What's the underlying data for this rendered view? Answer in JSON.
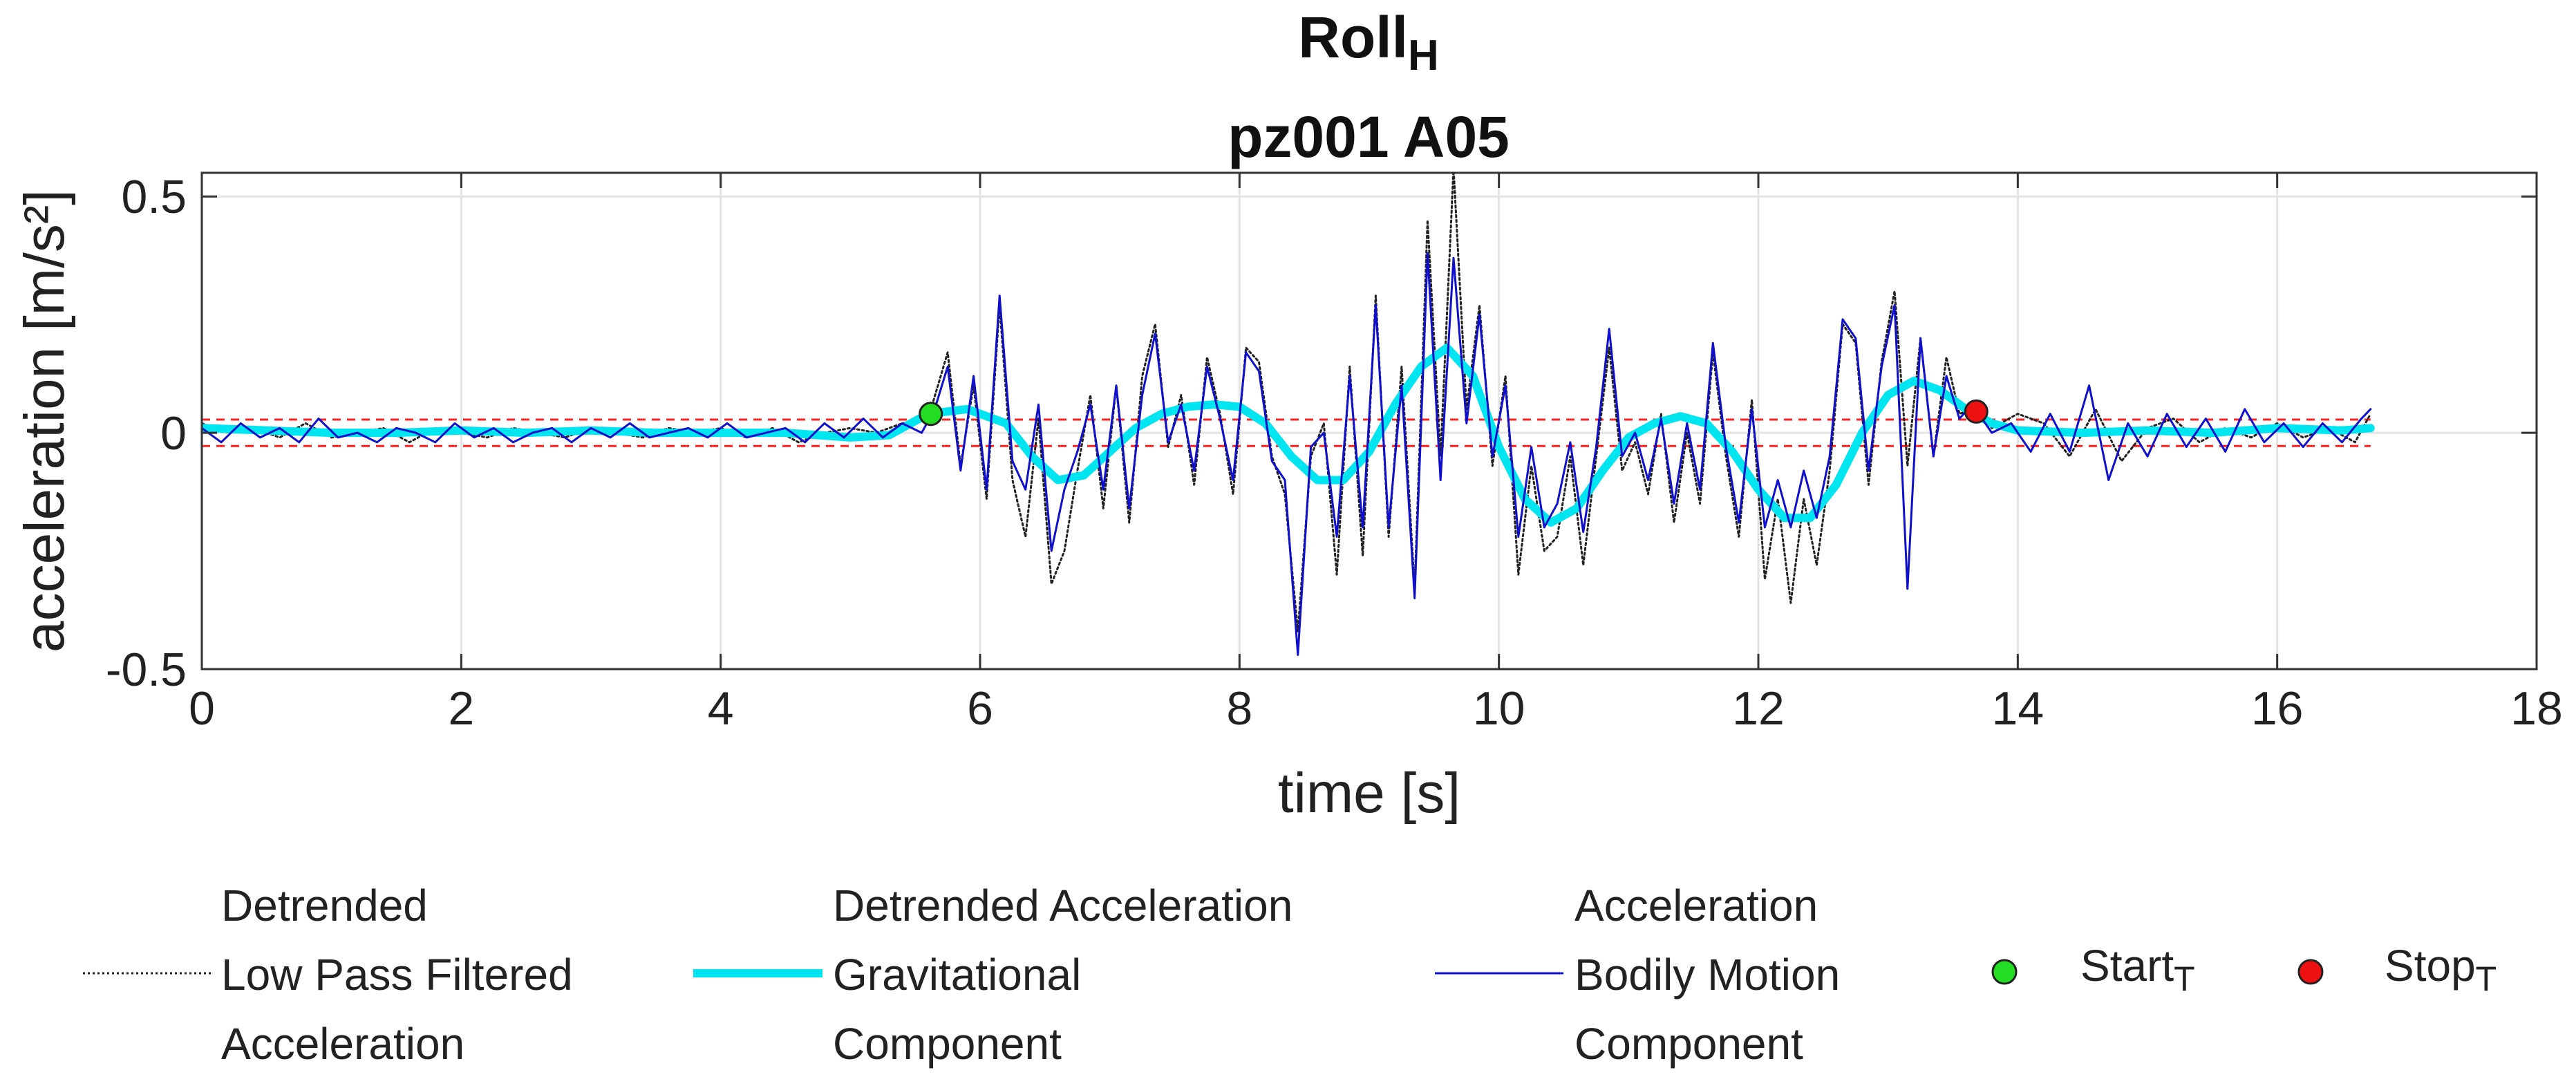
{
  "figure": {
    "title": "Roll",
    "title_sub": "H",
    "subtitle": "pz001 A05"
  },
  "chart_data": {
    "type": "line",
    "title": "Roll_H",
    "subtitle": "pz001 A05",
    "xlabel": "time [s]",
    "ylabel": "acceleration [m/s²]",
    "xlim": [
      0,
      18
    ],
    "ylim": [
      -0.5,
      0.55
    ],
    "xticks": [
      0,
      2,
      4,
      6,
      8,
      10,
      12,
      14,
      16,
      18
    ],
    "xtick_labels": [
      "0",
      "2",
      "4",
      "6",
      "8",
      "10",
      "12",
      "14",
      "16",
      "18"
    ],
    "yticks": [
      -0.5,
      0,
      0.5
    ],
    "ytick_labels": [
      "-0.5",
      "0",
      "0.5"
    ],
    "grid": true,
    "threshold_lines": [
      0.028,
      -0.028
    ],
    "series": [
      {
        "name": "Detrended Low Pass Filtered Acceleration",
        "color": "#222222",
        "style": "dotted",
        "x": [
          0,
          0.2,
          0.4,
          0.6,
          0.8,
          1.0,
          1.2,
          1.4,
          1.6,
          1.8,
          2.0,
          2.2,
          2.4,
          2.6,
          2.8,
          3.0,
          3.2,
          3.4,
          3.6,
          3.8,
          4.0,
          4.2,
          4.4,
          4.6,
          4.8,
          5.0,
          5.2,
          5.4,
          5.6,
          5.75,
          5.85,
          5.95,
          6.05,
          6.15,
          6.25,
          6.35,
          6.45,
          6.55,
          6.65,
          6.75,
          6.85,
          6.95,
          7.05,
          7.15,
          7.25,
          7.35,
          7.45,
          7.55,
          7.65,
          7.75,
          7.85,
          7.95,
          8.05,
          8.15,
          8.25,
          8.35,
          8.45,
          8.55,
          8.65,
          8.75,
          8.85,
          8.95,
          9.05,
          9.15,
          9.25,
          9.35,
          9.45,
          9.55,
          9.65,
          9.75,
          9.85,
          9.95,
          10.05,
          10.15,
          10.25,
          10.35,
          10.45,
          10.55,
          10.65,
          10.75,
          10.85,
          10.95,
          11.05,
          11.15,
          11.25,
          11.35,
          11.45,
          11.55,
          11.65,
          11.75,
          11.85,
          11.95,
          12.05,
          12.15,
          12.25,
          12.35,
          12.45,
          12.55,
          12.65,
          12.75,
          12.85,
          12.95,
          13.05,
          13.15,
          13.25,
          13.35,
          13.45,
          13.55,
          13.65,
          13.8,
          14.0,
          14.2,
          14.4,
          14.6,
          14.8,
          15.0,
          15.2,
          15.4,
          15.6,
          15.8,
          16.0,
          16.2,
          16.4,
          16.6,
          16.72
        ],
        "values": [
          0.02,
          0.0,
          0.01,
          -0.01,
          0.02,
          -0.01,
          0.0,
          0.01,
          -0.02,
          0.01,
          0.0,
          -0.01,
          0.01,
          0.0,
          -0.01,
          0.01,
          0.0,
          -0.01,
          0.01,
          0.0,
          0.01,
          -0.01,
          0.01,
          -0.02,
          0.0,
          0.01,
          0.0,
          0.02,
          0.03,
          0.17,
          -0.07,
          0.1,
          -0.14,
          0.27,
          -0.1,
          -0.22,
          0.03,
          -0.32,
          -0.25,
          -0.08,
          0.08,
          -0.16,
          0.1,
          -0.19,
          0.12,
          0.23,
          -0.03,
          0.08,
          -0.11,
          0.16,
          0.04,
          -0.13,
          0.18,
          0.15,
          -0.05,
          -0.13,
          -0.42,
          -0.05,
          0.02,
          -0.3,
          0.14,
          -0.26,
          0.29,
          -0.22,
          0.14,
          -0.33,
          0.45,
          -0.05,
          0.56,
          0.05,
          0.27,
          -0.07,
          0.12,
          -0.3,
          -0.07,
          -0.25,
          -0.22,
          -0.05,
          -0.28,
          -0.05,
          0.18,
          -0.08,
          -0.02,
          -0.13,
          0.04,
          -0.19,
          0.0,
          -0.15,
          0.17,
          -0.05,
          -0.22,
          0.07,
          -0.31,
          -0.14,
          -0.36,
          -0.14,
          -0.28,
          -0.08,
          0.23,
          0.19,
          -0.11,
          0.15,
          0.3,
          -0.07,
          0.2,
          -0.05,
          0.16,
          0.04,
          0.05,
          0.01,
          0.04,
          0.02,
          -0.05,
          0.05,
          -0.06,
          0.01,
          0.03,
          -0.02,
          0.01,
          -0.01,
          0.02,
          -0.01,
          0.01,
          -0.02,
          0.04
        ]
      },
      {
        "name": "Detrended Acceleration Gravitational Component",
        "color": "#00e5f0",
        "style": "solid",
        "x": [
          0,
          0.5,
          1.0,
          1.5,
          2.0,
          2.5,
          3.0,
          3.5,
          4.0,
          4.5,
          5.0,
          5.3,
          5.6,
          5.9,
          6.2,
          6.4,
          6.6,
          6.8,
          7.0,
          7.2,
          7.4,
          7.6,
          7.8,
          8.0,
          8.2,
          8.4,
          8.6,
          8.8,
          9.0,
          9.2,
          9.4,
          9.6,
          9.8,
          10.0,
          10.2,
          10.4,
          10.6,
          10.8,
          11.0,
          11.2,
          11.4,
          11.6,
          11.8,
          12.0,
          12.2,
          12.4,
          12.6,
          12.8,
          13.0,
          13.2,
          13.4,
          13.6,
          13.8,
          14.0,
          14.5,
          15.0,
          15.5,
          16.0,
          16.5,
          16.72
        ],
        "values": [
          0.01,
          0.005,
          0.0,
          0.0,
          0.005,
          0.0,
          0.005,
          0.0,
          0.0,
          0.0,
          -0.01,
          -0.005,
          0.04,
          0.05,
          0.02,
          -0.05,
          -0.1,
          -0.09,
          -0.04,
          0.01,
          0.04,
          0.055,
          0.06,
          0.055,
          0.02,
          -0.05,
          -0.1,
          -0.1,
          -0.04,
          0.06,
          0.14,
          0.18,
          0.12,
          -0.03,
          -0.14,
          -0.19,
          -0.16,
          -0.08,
          -0.01,
          0.02,
          0.035,
          0.02,
          -0.04,
          -0.12,
          -0.18,
          -0.18,
          -0.11,
          0.0,
          0.08,
          0.11,
          0.09,
          0.05,
          0.02,
          0.005,
          0.0,
          0.005,
          0.0,
          0.01,
          0.005,
          0.01
        ]
      },
      {
        "name": "Acceleration Bodily Motion Component",
        "color": "#1010cc",
        "style": "solid",
        "x": [
          0,
          0.15,
          0.3,
          0.45,
          0.6,
          0.75,
          0.9,
          1.05,
          1.2,
          1.35,
          1.5,
          1.65,
          1.8,
          1.95,
          2.1,
          2.25,
          2.4,
          2.55,
          2.7,
          2.85,
          3.0,
          3.15,
          3.3,
          3.45,
          3.6,
          3.75,
          3.9,
          4.05,
          4.2,
          4.35,
          4.5,
          4.65,
          4.8,
          4.95,
          5.1,
          5.25,
          5.4,
          5.55,
          5.65,
          5.75,
          5.85,
          5.95,
          6.05,
          6.15,
          6.25,
          6.35,
          6.45,
          6.55,
          6.65,
          6.75,
          6.85,
          6.95,
          7.05,
          7.15,
          7.25,
          7.35,
          7.45,
          7.55,
          7.65,
          7.75,
          7.85,
          7.95,
          8.05,
          8.15,
          8.25,
          8.35,
          8.45,
          8.55,
          8.65,
          8.75,
          8.85,
          8.95,
          9.05,
          9.15,
          9.25,
          9.35,
          9.45,
          9.55,
          9.65,
          9.75,
          9.85,
          9.95,
          10.05,
          10.15,
          10.25,
          10.35,
          10.45,
          10.55,
          10.65,
          10.75,
          10.85,
          10.95,
          11.05,
          11.15,
          11.25,
          11.35,
          11.45,
          11.55,
          11.65,
          11.75,
          11.85,
          11.95,
          12.05,
          12.15,
          12.25,
          12.35,
          12.45,
          12.55,
          12.65,
          12.75,
          12.85,
          12.95,
          13.05,
          13.15,
          13.25,
          13.35,
          13.45,
          13.55,
          13.65,
          13.8,
          13.95,
          14.1,
          14.25,
          14.4,
          14.55,
          14.7,
          14.85,
          15.0,
          15.15,
          15.3,
          15.45,
          15.6,
          15.75,
          15.9,
          16.05,
          16.2,
          16.35,
          16.5,
          16.65,
          16.72
        ],
        "values": [
          0.01,
          -0.02,
          0.02,
          -0.01,
          0.01,
          -0.02,
          0.03,
          -0.01,
          0.0,
          -0.02,
          0.01,
          0.0,
          -0.02,
          0.02,
          -0.01,
          0.01,
          -0.02,
          0.0,
          0.01,
          -0.02,
          0.01,
          -0.01,
          0.02,
          -0.01,
          0.0,
          0.01,
          -0.01,
          0.02,
          -0.01,
          0.0,
          0.01,
          -0.02,
          0.02,
          -0.01,
          0.03,
          -0.01,
          0.02,
          0.0,
          0.05,
          0.14,
          -0.08,
          0.12,
          -0.12,
          0.29,
          -0.06,
          -0.12,
          0.06,
          -0.25,
          -0.12,
          -0.04,
          0.06,
          -0.12,
          0.1,
          -0.16,
          0.08,
          0.21,
          -0.02,
          0.06,
          -0.08,
          0.14,
          0.03,
          -0.1,
          0.17,
          0.13,
          -0.06,
          -0.1,
          -0.47,
          -0.03,
          0.0,
          -0.22,
          0.12,
          -0.2,
          0.27,
          -0.2,
          0.1,
          -0.35,
          0.38,
          -0.1,
          0.37,
          0.02,
          0.25,
          -0.05,
          0.1,
          -0.22,
          -0.03,
          -0.2,
          -0.15,
          -0.02,
          -0.21,
          -0.03,
          0.22,
          -0.05,
          0.0,
          -0.1,
          0.03,
          -0.15,
          0.02,
          -0.12,
          0.19,
          -0.03,
          -0.19,
          0.05,
          -0.2,
          -0.1,
          -0.2,
          -0.08,
          -0.18,
          -0.05,
          0.24,
          0.2,
          -0.08,
          0.14,
          0.27,
          -0.33,
          0.2,
          -0.05,
          0.12,
          0.03,
          0.06,
          0.0,
          0.02,
          -0.04,
          0.04,
          -0.04,
          0.1,
          -0.1,
          0.02,
          -0.05,
          0.04,
          -0.03,
          0.03,
          -0.04,
          0.05,
          -0.02,
          0.02,
          -0.03,
          0.02,
          -0.02,
          0.03,
          0.05
        ]
      }
    ],
    "markers": [
      {
        "name": "Start_T",
        "x": 5.62,
        "y": 0.04,
        "color": "#22dd22"
      },
      {
        "name": "Stop_T",
        "x": 13.68,
        "y": 0.045,
        "color": "#ee1111"
      }
    ]
  },
  "legend": {
    "entries": [
      {
        "lines": [
          "Detrended",
          "Low Pass Filtered",
          "Acceleration"
        ]
      },
      {
        "lines": [
          "Detrended Acceleration",
          "Gravitational",
          "Component"
        ]
      },
      {
        "lines": [
          "Acceleration",
          "Bodily Motion",
          "Component"
        ]
      }
    ],
    "start_label": "Start",
    "start_sub": "T",
    "stop_label": "Stop",
    "stop_sub": "T"
  }
}
